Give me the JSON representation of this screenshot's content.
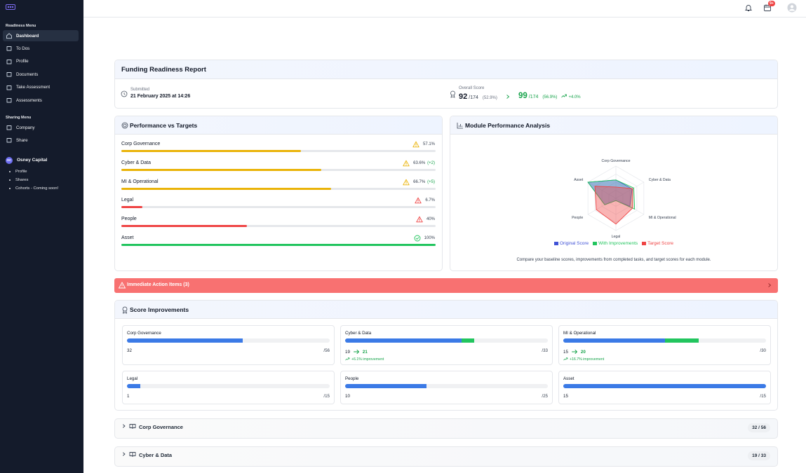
{
  "sidebar": {
    "readiness_title": "Readiness Menu",
    "readiness_items": [
      "Dashboard",
      "To Dos",
      "Profile",
      "Documents",
      "Take Assessment",
      "Assessments"
    ],
    "sharing_title": "Sharing Menu",
    "sharing_items": [
      "Company",
      "Share"
    ],
    "org": {
      "initials": "OC",
      "name": "Osney Capital",
      "items": [
        "Profile",
        "Shares",
        "Cohorts - Coming soon!"
      ]
    }
  },
  "topbar": {
    "badge": "9+"
  },
  "report": {
    "title": "Funding Readiness Report",
    "submitted_label": "Submitted",
    "submitted_date": "21 February 2025 at 14:26",
    "overall_label": "Overall Score",
    "original": {
      "score": "92",
      "total": "/174",
      "percent": "(52.9%)"
    },
    "improved": {
      "score": "99",
      "total": "/174",
      "percent": "(56.9%)"
    },
    "change": "+4.0%"
  },
  "performance": {
    "title": "Performance vs Targets",
    "rows": [
      {
        "name": "Corp Governance",
        "value": 57.1,
        "value_label": "57.1%",
        "color": "#eab308",
        "icon": "warning"
      },
      {
        "name": "Cyber & Data",
        "value": 63.6,
        "value_label": "63.6%",
        "delta": "(+2)",
        "color": "#eab308",
        "icon": "warning"
      },
      {
        "name": "MI & Operational",
        "value": 66.7,
        "value_label": "66.7%",
        "delta": "(+5)",
        "color": "#eab308",
        "icon": "warning"
      },
      {
        "name": "Legal",
        "value": 6.7,
        "value_label": "6.7%",
        "color": "#ef4444",
        "icon": "warning"
      },
      {
        "name": "People",
        "value": 40,
        "value_label": "40%",
        "color": "#ef4444",
        "icon": "warning"
      },
      {
        "name": "Asset",
        "value": 100,
        "value_label": "100%",
        "color": "#22c55e",
        "icon": "check"
      }
    ]
  },
  "radar": {
    "title": "Module Performance Analysis",
    "axes": [
      "Corp Governance",
      "Cyber & Data",
      "MI & Operational",
      "Legal",
      "People",
      "Asset"
    ],
    "rlim": [
      0,
      100
    ],
    "rticks": [
      25,
      50,
      75,
      100
    ],
    "series": [
      {
        "name": "Original Score",
        "color": "#4052d6",
        "values": [
          57,
          58,
          50,
          7,
          40,
          100
        ]
      },
      {
        "name": "With Improvements",
        "color": "#22c55e",
        "values": [
          57,
          64,
          67,
          7,
          40,
          100
        ]
      },
      {
        "name": "Target Score",
        "color": "#ef4444",
        "values": [
          35,
          60,
          60,
          80,
          70,
          75
        ]
      }
    ],
    "caption": "Compare your baseline scores, improvements from completed tasks, and target scores for each module."
  },
  "action": {
    "title": "Immediate Action Items (3)"
  },
  "improvements": {
    "title": "Score Improvements",
    "modules": [
      {
        "name": "Corp Governance",
        "score": 32,
        "max": 56,
        "max_label": "/56"
      },
      {
        "name": "Cyber & Data",
        "score": 19,
        "improved": 21,
        "max": 33,
        "max_label": "/33",
        "improvement": "+6.1% improvement"
      },
      {
        "name": "MI & Operational",
        "score": 15,
        "improved": 20,
        "max": 30,
        "max_label": "/30",
        "improvement": "+16.7% improvement"
      },
      {
        "name": "Legal",
        "score": 1,
        "max": 15,
        "max_label": "/15"
      },
      {
        "name": "People",
        "score": 10,
        "max": 25,
        "max_label": "/25"
      },
      {
        "name": "Asset",
        "score": 15,
        "max": 15,
        "max_label": "/15"
      }
    ]
  },
  "accordion": [
    {
      "name": "Corp Governance",
      "score": "32 / 56"
    },
    {
      "name": "Cyber & Data",
      "score": "19 / 33"
    }
  ]
}
